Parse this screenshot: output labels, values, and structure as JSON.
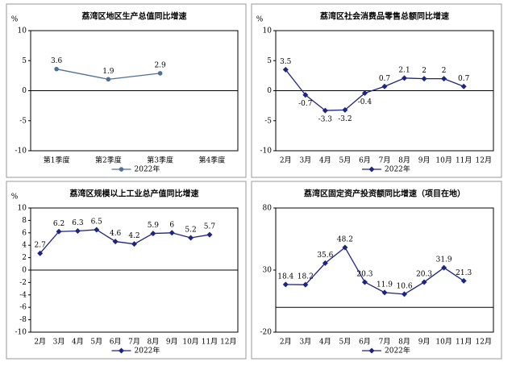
{
  "chart_data": [
    {
      "type": "line",
      "title": "荔湾区地区生产总值同比增速",
      "ylabel": "%",
      "categories": [
        "第1季度",
        "第2季度",
        "第3季度",
        "第4季度"
      ],
      "series": [
        {
          "name": "2022年",
          "color": "#4f6f96",
          "marker": "circle",
          "values": [
            3.6,
            1.9,
            2.9,
            null
          ]
        }
      ],
      "ylim": [
        -10,
        10
      ],
      "yticks": [
        -10,
        -5,
        0,
        5,
        10
      ],
      "legend": "bottom"
    },
    {
      "type": "line",
      "title": "荔湾区社会消费品零售总额同比增速",
      "ylabel": "%",
      "categories": [
        "2月",
        "3月",
        "4月",
        "5月",
        "6月",
        "7月",
        "8月",
        "9月",
        "10月",
        "11月",
        "12月"
      ],
      "series": [
        {
          "name": "2022年",
          "color": "#1c2484",
          "marker": "diamond",
          "values": [
            3.5,
            -0.7,
            -3.3,
            -3.2,
            -0.4,
            0.7,
            2.1,
            2.0,
            2.0,
            0.7,
            null
          ]
        }
      ],
      "ylim": [
        -10,
        10
      ],
      "yticks": [
        -10,
        -5,
        0,
        5,
        10
      ],
      "legend": "bottom"
    },
    {
      "type": "line",
      "title": "荔湾区规模以上工业总产值同比增速",
      "ylabel": "%",
      "categories": [
        "2月",
        "3月",
        "4月",
        "5月",
        "6月",
        "7月",
        "8月",
        "9月",
        "10月",
        "11月",
        "12月"
      ],
      "series": [
        {
          "name": "2022年",
          "color": "#1c2484",
          "marker": "diamond",
          "values": [
            2.7,
            6.2,
            6.3,
            6.5,
            4.6,
            4.2,
            5.9,
            6.0,
            5.2,
            5.7,
            null
          ]
        }
      ],
      "ylim": [
        -10,
        10
      ],
      "yticks": [
        -10,
        -8,
        -6,
        -4,
        -2,
        0,
        2,
        4,
        6,
        8,
        10
      ],
      "legend": "bottom"
    },
    {
      "type": "line",
      "title": "荔湾区固定资产投资额同比增速（项目在地）",
      "categories": [
        "2月",
        "3月",
        "4月",
        "5月",
        "6月",
        "7月",
        "8月",
        "9月",
        "10月",
        "11月",
        "12月"
      ],
      "series": [
        {
          "name": "2022年",
          "color": "#1c2484",
          "marker": "diamond",
          "values": [
            18.4,
            18.2,
            35.6,
            48.2,
            20.3,
            11.9,
            10.6,
            20.3,
            31.9,
            21.3,
            null
          ]
        }
      ],
      "ylim": [
        -20,
        80
      ],
      "yticks": [
        -20,
        30,
        80
      ],
      "legend": "bottom"
    }
  ]
}
